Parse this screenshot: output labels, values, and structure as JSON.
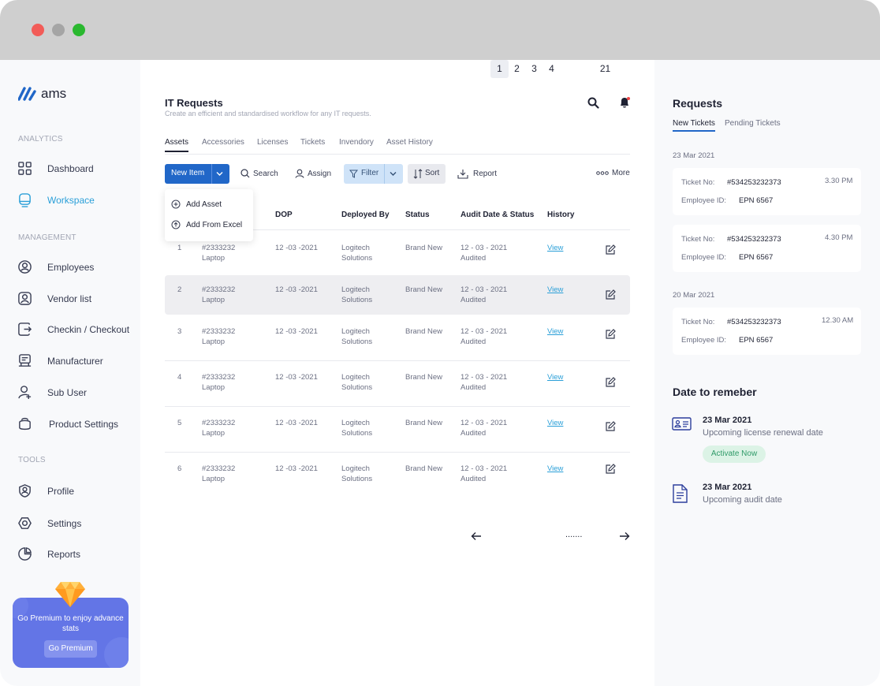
{
  "app": {
    "name": "ams"
  },
  "sidebar": {
    "sections": [
      "ANALYTICS",
      "MANAGEMENT",
      "TOOLS"
    ],
    "items": [
      {
        "label": "Dashboard",
        "icon": "dashboard-icon"
      },
      {
        "label": "Workspace",
        "icon": "workspace-icon",
        "active": true
      },
      {
        "label": "Employees",
        "icon": "employees-icon"
      },
      {
        "label": "Vendor list",
        "icon": "vendor-icon"
      },
      {
        "label": "Checkin / Checkout",
        "icon": "checkin-icon"
      },
      {
        "label": "Manufacturer",
        "icon": "manufacturer-icon"
      },
      {
        "label": "Sub User",
        "icon": "sub-user-icon"
      },
      {
        "label": "Product Settings",
        "icon": "product-settings-icon"
      },
      {
        "label": "Profile",
        "icon": "profile-icon"
      },
      {
        "label": "Settings",
        "icon": "settings-icon"
      },
      {
        "label": "Reports",
        "icon": "reports-icon"
      }
    ],
    "premium": {
      "text": "Go Premium to enjoy advance stats",
      "button": "Go Premium"
    }
  },
  "main": {
    "title": "IT Requests",
    "subtitle": "Create an efficient and standardised workflow for any IT requests.",
    "tabs": [
      "Assets",
      "Accessories",
      "Licenses",
      "Tickets",
      "Invendory",
      "Asset History"
    ],
    "toolbar": {
      "new_item": "New Item",
      "search": "Search",
      "assign": "Assign",
      "filter": "Filter",
      "sort": "Sort",
      "report": "Report",
      "more": "More"
    },
    "dropdown": [
      "Add Asset",
      "Add From Excel"
    ],
    "columns": [
      "e",
      "DOP",
      "Deployed By",
      "Status",
      "Audit Date & Status",
      "History"
    ],
    "rows": [
      {
        "no": "1",
        "id": "#2333232",
        "type": "Laptop",
        "dop": "12 -03 -2021",
        "by1": "Logitech",
        "by2": "Solutions",
        "status": "Brand New",
        "audit1": "12 - 03 - 2021",
        "audit2": "Audited",
        "history": "View"
      },
      {
        "no": "2",
        "id": "#2333232",
        "type": "Laptop",
        "dop": "12 -03 -2021",
        "by1": "Logitech",
        "by2": "Solutions",
        "status": "Brand New",
        "audit1": "12 - 03 - 2021",
        "audit2": "Audited",
        "history": "View"
      },
      {
        "no": "3",
        "id": "#2333232",
        "type": "Laptop",
        "dop": "12 -03 -2021",
        "by1": "Logitech",
        "by2": "Solutions",
        "status": "Brand New",
        "audit1": "12 - 03 - 2021",
        "audit2": "Audited",
        "history": "View"
      },
      {
        "no": "4",
        "id": "#2333232",
        "type": "Laptop",
        "dop": "12 -03 -2021",
        "by1": "Logitech",
        "by2": "Solutions",
        "status": "Brand New",
        "audit1": "12 - 03 - 2021",
        "audit2": "Audited",
        "history": "View"
      },
      {
        "no": "5",
        "id": "#2333232",
        "type": "Laptop",
        "dop": "12 -03 -2021",
        "by1": "Logitech",
        "by2": "Solutions",
        "status": "Brand New",
        "audit1": "12 - 03 - 2021",
        "audit2": "Audited",
        "history": "View"
      },
      {
        "no": "6",
        "id": "#2333232",
        "type": "Laptop",
        "dop": "12 -03 -2021",
        "by1": "Logitech",
        "by2": "Solutions",
        "status": "Brand New",
        "audit1": "12 - 03 - 2021",
        "audit2": "Audited",
        "history": "View"
      }
    ],
    "pagination": {
      "pages": [
        "1",
        "2",
        "3",
        "4",
        ".......",
        "21"
      ],
      "active": "1"
    }
  },
  "requests": {
    "title": "Requests",
    "tabs": [
      "New Tickets",
      "Pending Tickets"
    ],
    "groups": [
      {
        "date": "23 Mar 2021",
        "tickets": [
          {
            "ticket_label": "Ticket No:",
            "ticket_no": "#534253232373",
            "time": "3.30 PM",
            "emp_label": "Employee ID:",
            "emp_id": "EPN 6567"
          },
          {
            "ticket_label": "Ticket No:",
            "ticket_no": "#534253232373",
            "time": "4.30 PM",
            "emp_label": "Employee ID:",
            "emp_id": "EPN 6567"
          }
        ]
      },
      {
        "date": "20 Mar 2021",
        "tickets": [
          {
            "ticket_label": "Ticket No:",
            "ticket_no": "#534253232373",
            "time": "12.30 AM",
            "emp_label": "Employee ID:",
            "emp_id": "EPN 6567"
          }
        ]
      }
    ],
    "dates_title": "Date to remeber",
    "events": [
      {
        "date": "23 Mar 2021",
        "desc": "Upcoming license renewal date",
        "action": "Activate Now"
      },
      {
        "date": "23 Mar 2021",
        "desc": "Upcoming audit date"
      }
    ]
  },
  "colors": {
    "accent": "#2167c8",
    "active_nav": "#2a9fd8",
    "premium": "#6375e6",
    "traffic": [
      "#ff5f57",
      "#a9a9a9",
      "#28c840"
    ]
  }
}
